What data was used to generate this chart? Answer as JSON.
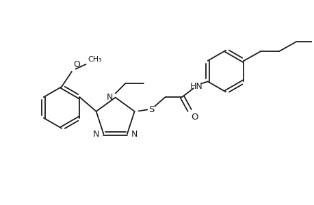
{
  "background_color": "#ffffff",
  "line_color": "#1a1a1a",
  "line_width": 1.3,
  "figsize": [
    4.6,
    3.0
  ],
  "dpi": 100,
  "xlim": [
    0,
    9.2
  ],
  "ylim": [
    0,
    6.0
  ]
}
